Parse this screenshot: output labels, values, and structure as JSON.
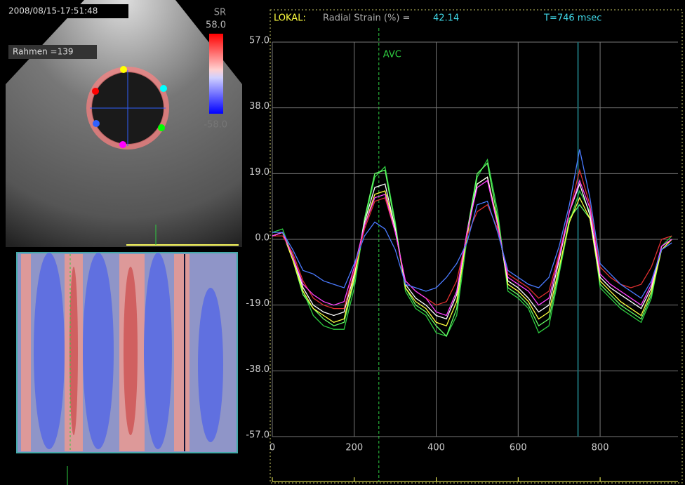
{
  "image_panel": {
    "timestamp": "2008/08/15-17:51:48",
    "frame_label": "Rahmen =139",
    "scale_title": "SR",
    "scale_max": "58.0",
    "scale_min": "-58.0"
  },
  "chart_data": {
    "type": "line",
    "readout": {
      "prefix": "LOKAL:",
      "label": "Radial Strain (%) =",
      "value": "42.14",
      "time": "T=746 msec"
    },
    "x": [
      0,
      25,
      50,
      75,
      100,
      125,
      150,
      175,
      200,
      225,
      250,
      275,
      300,
      325,
      350,
      375,
      400,
      425,
      450,
      475,
      500,
      525,
      550,
      575,
      600,
      625,
      650,
      675,
      700,
      725,
      750,
      775,
      800,
      825,
      850,
      875,
      900,
      925,
      950,
      975
    ],
    "series": [
      {
        "color": "#2ecc40",
        "values": [
          2,
          3,
          -5,
          -15,
          -22,
          -25,
          -26,
          -26,
          -14,
          5,
          18,
          21,
          5,
          -15,
          -20,
          -22,
          -27,
          -28,
          -22,
          0,
          18,
          23,
          8,
          -15,
          -17,
          -20,
          -27,
          -25,
          -10,
          5,
          14,
          8,
          -14,
          -17,
          -20,
          -22,
          -24,
          -17,
          -2,
          1
        ]
      },
      {
        "color": "#66ff66",
        "values": [
          1,
          2,
          -6,
          -16,
          -20,
          -23,
          -25,
          -24,
          -12,
          6,
          19,
          20,
          4,
          -14,
          -19,
          -21,
          -25,
          -28,
          -20,
          2,
          19,
          22,
          6,
          -14,
          -16,
          -19,
          -25,
          -23,
          -9,
          6,
          10,
          6,
          -13,
          -16,
          -19,
          -21,
          -23,
          -16,
          -3,
          0
        ]
      },
      {
        "color": "#ffff40",
        "values": [
          1,
          2,
          -6,
          -15,
          -20,
          -22,
          -24,
          -23,
          -11,
          4,
          13,
          14,
          3,
          -14,
          -18,
          -20,
          -24,
          -25,
          -18,
          1,
          16,
          18,
          5,
          -13,
          -15,
          -18,
          -23,
          -21,
          -8,
          5,
          12,
          6,
          -12,
          -15,
          -18,
          -20,
          -22,
          -15,
          -3,
          0
        ]
      },
      {
        "color": "#ffffff",
        "values": [
          1,
          2,
          -5,
          -14,
          -19,
          -21,
          -22,
          -21,
          -10,
          5,
          15,
          16,
          3,
          -13,
          -17,
          -19,
          -22,
          -23,
          -16,
          2,
          16,
          18,
          4,
          -12,
          -14,
          -17,
          -21,
          -19,
          -6,
          8,
          16,
          7,
          -11,
          -14,
          -16,
          -18,
          -20,
          -14,
          -2,
          0
        ]
      },
      {
        "color": "#e03030",
        "values": [
          1,
          1,
          -4,
          -12,
          -17,
          -19,
          -20,
          -20,
          -9,
          3,
          11,
          12,
          2,
          -12,
          -15,
          -17,
          -19,
          -18,
          -12,
          1,
          8,
          10,
          3,
          -10,
          -12,
          -14,
          -17,
          -15,
          -4,
          8,
          20,
          10,
          -8,
          -11,
          -13,
          -14,
          -13,
          -8,
          0,
          1
        ]
      },
      {
        "color": "#ff40ff",
        "values": [
          1,
          2,
          -5,
          -13,
          -16,
          -18,
          -19,
          -18,
          -8,
          4,
          12,
          13,
          2,
          -12,
          -15,
          -17,
          -21,
          -22,
          -15,
          2,
          15,
          17,
          4,
          -11,
          -13,
          -15,
          -19,
          -17,
          -5,
          8,
          17,
          9,
          -10,
          -13,
          -15,
          -17,
          -19,
          -13,
          -2,
          0
        ]
      },
      {
        "color": "#4a7aff",
        "values": [
          2,
          2,
          -3,
          -9,
          -10,
          -12,
          -13,
          -14,
          -7,
          1,
          5,
          3,
          -3,
          -13,
          -14,
          -15,
          -14,
          -11,
          -7,
          -1,
          10,
          11,
          2,
          -9,
          -11,
          -13,
          -14,
          -11,
          -2,
          10,
          26,
          12,
          -7,
          -10,
          -13,
          -15,
          -17,
          -12,
          -3,
          -1
        ]
      }
    ],
    "xlim": [
      0,
      990
    ],
    "xticks": [
      0,
      200,
      400,
      600,
      800
    ],
    "ylim": [
      -57,
      57
    ],
    "yticks": [
      {
        "value": 57,
        "label": "57.0"
      },
      {
        "value": 38,
        "label": "38.0"
      },
      {
        "value": 19,
        "label": "19.0"
      },
      {
        "value": 0,
        "label": "0.0"
      },
      {
        "value": -19,
        "label": "-19.0"
      },
      {
        "value": -38,
        "label": "-38.0"
      },
      {
        "value": -57,
        "label": "-57.0"
      }
    ],
    "grid": true,
    "annotations": [
      {
        "text": "AVC",
        "x": 260
      }
    ],
    "cursor_x": 746
  }
}
